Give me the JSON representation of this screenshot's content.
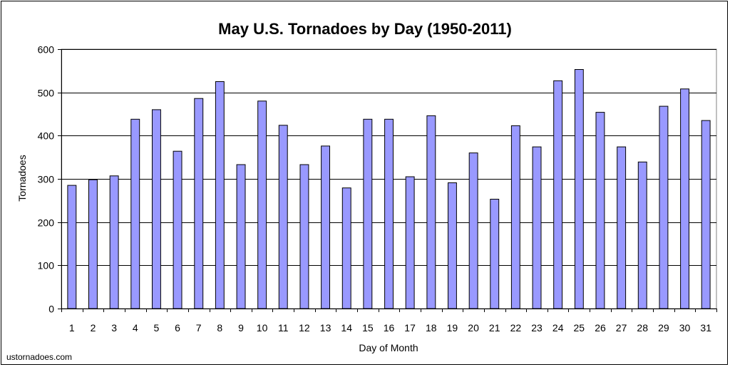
{
  "chart_data": {
    "type": "bar",
    "title": "May U.S. Tornadoes by Day (1950-2011)",
    "xlabel": "Day of Month",
    "ylabel": "Tornadoes",
    "ylim": [
      0,
      600
    ],
    "yticks": [
      0,
      100,
      200,
      300,
      400,
      500,
      600
    ],
    "grid": true,
    "categories": [
      "1",
      "2",
      "3",
      "4",
      "5",
      "6",
      "7",
      "8",
      "9",
      "10",
      "11",
      "12",
      "13",
      "14",
      "15",
      "16",
      "17",
      "18",
      "19",
      "20",
      "21",
      "22",
      "23",
      "24",
      "25",
      "26",
      "27",
      "28",
      "29",
      "30",
      "31"
    ],
    "values": [
      285,
      298,
      307,
      438,
      460,
      364,
      486,
      525,
      333,
      480,
      424,
      333,
      376,
      279,
      438,
      438,
      305,
      446,
      291,
      360,
      253,
      423,
      374,
      527,
      553,
      454,
      374,
      339,
      468,
      508,
      435
    ],
    "bar_color": "#9999ff",
    "bar_edge_color": "#000000"
  },
  "credit": "ustornadoes.com"
}
